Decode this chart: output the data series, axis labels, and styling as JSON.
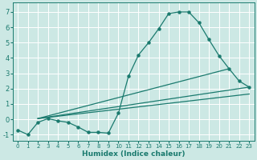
{
  "xlabel": "Humidex (Indice chaleur)",
  "bg_color": "#cce8e4",
  "grid_color": "#ffffff",
  "line_color": "#1a7a6e",
  "xlim": [
    -0.5,
    23.5
  ],
  "ylim": [
    -1.4,
    7.6
  ],
  "xticks": [
    0,
    1,
    2,
    3,
    4,
    5,
    6,
    7,
    8,
    9,
    10,
    11,
    12,
    13,
    14,
    15,
    16,
    17,
    18,
    19,
    20,
    21,
    22,
    23
  ],
  "yticks": [
    -1,
    0,
    1,
    2,
    3,
    4,
    5,
    6,
    7
  ],
  "line1_x": [
    0,
    1,
    2,
    3,
    4,
    5,
    6,
    7,
    8,
    9,
    10,
    11,
    12,
    13,
    14,
    15,
    16,
    17,
    18,
    19,
    20,
    21,
    22,
    23
  ],
  "line1_y": [
    -0.7,
    -1.0,
    -0.2,
    0.05,
    -0.1,
    -0.2,
    -0.5,
    -0.85,
    -0.85,
    -0.9,
    0.4,
    2.8,
    4.2,
    5.0,
    5.9,
    6.9,
    7.0,
    7.0,
    6.3,
    5.2,
    4.15,
    3.3,
    2.5,
    2.1
  ],
  "line2_x": [
    2,
    23
  ],
  "line2_y": [
    0.05,
    1.65
  ],
  "line3_x": [
    2,
    21
  ],
  "line3_y": [
    0.05,
    3.3
  ],
  "line4_x": [
    2,
    23
  ],
  "line4_y": [
    0.05,
    2.1
  ],
  "xlabel_fontsize": 6.5,
  "tick_fontsize_x": 5.0,
  "tick_fontsize_y": 6.0
}
